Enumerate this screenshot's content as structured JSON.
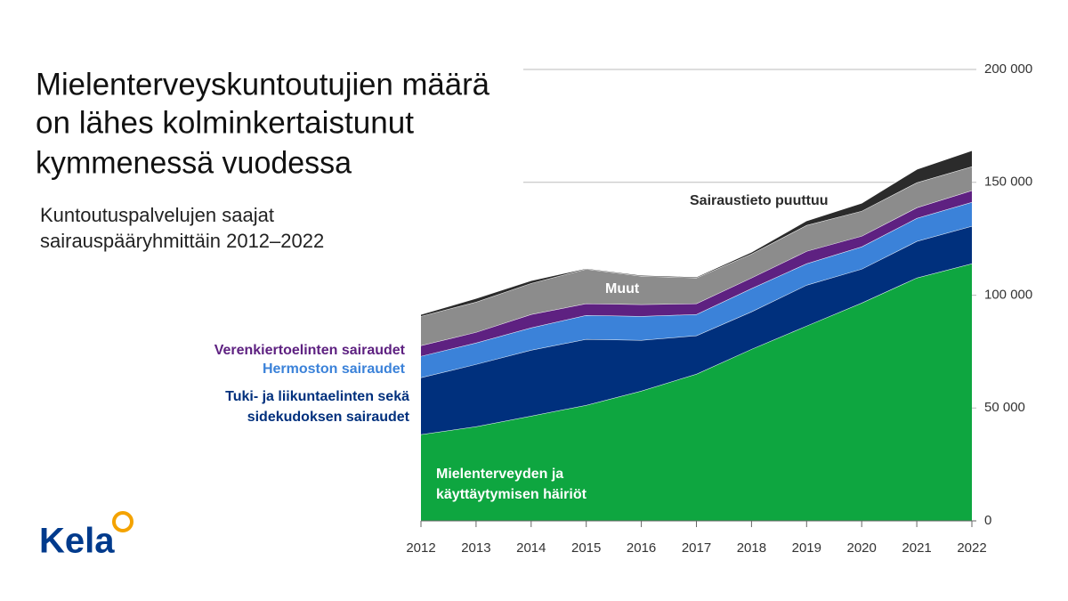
{
  "chart_data": {
    "type": "stacked_area",
    "title": [
      "Mielenterveyskuntoutujien määrä",
      "on lähes kolminkertaistunut",
      "kymmenessä vuodessa"
    ],
    "subtitle": [
      "Kuntoutuspalvelujen saajat",
      "sairauspääryhmittäin 2012–2022"
    ],
    "logo": "Kela",
    "x": [
      2012,
      2013,
      2014,
      2015,
      2016,
      2017,
      2018,
      2019,
      2020,
      2021,
      2022
    ],
    "xlim": [
      2012,
      2022
    ],
    "ylim": [
      0,
      200000
    ],
    "yticks": [
      0,
      {
        "value": 50000,
        "label": "50 000"
      },
      {
        "value": 100000,
        "label": "100 000"
      },
      {
        "value": 150000,
        "label": "150 000"
      },
      {
        "value": 200000,
        "label": "200 000"
      }
    ],
    "grid": true,
    "series": [
      {
        "name": "Mielenterveyden ja käyttäytymisen häiriöt",
        "color": "#0ea640",
        "values": [
          38300,
          41800,
          46500,
          51300,
          57600,
          65100,
          76100,
          86400,
          96600,
          107700,
          114000
        ]
      },
      {
        "name": "Tuki- ja liikuntaelinten sekä sidekudoksen sairaudet",
        "color": "#00307d",
        "values": [
          25200,
          27600,
          29200,
          29200,
          22500,
          17000,
          16600,
          18100,
          15000,
          16200,
          16600
        ]
      },
      {
        "name": "Hermoston sairaudet",
        "color": "#3b82d9",
        "values": [
          9500,
          9500,
          9900,
          10600,
          10600,
          9400,
          10300,
          9500,
          9900,
          10200,
          10600
        ]
      },
      {
        "name": "Verenkiertoelinten sairaudet",
        "color": "#5e2181",
        "values": [
          4700,
          4700,
          5900,
          5200,
          5200,
          4800,
          4700,
          5500,
          4700,
          4700,
          5200
        ]
      },
      {
        "name": "Muut",
        "color": "#8c8c8c",
        "values": [
          13000,
          13400,
          13800,
          15300,
          12600,
          11400,
          10600,
          11500,
          11100,
          11100,
          10600
        ]
      },
      {
        "name": "Sairaustieto puuttuu",
        "color": "#2b2b2b",
        "values": [
          800,
          1600,
          1200,
          300,
          400,
          400,
          800,
          2000,
          3500,
          5900,
          7100
        ]
      }
    ]
  }
}
